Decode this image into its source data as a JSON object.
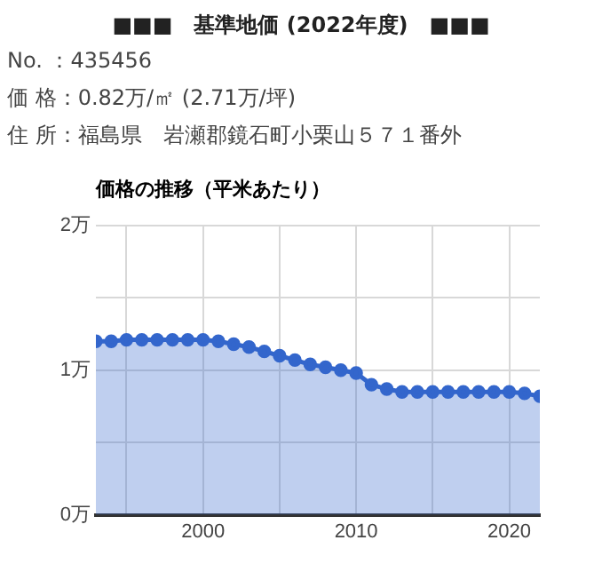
{
  "chart_data": {
    "type": "area",
    "title": "■■■　基準地価 (2022年度)　■■■",
    "subtitle": "価格の推移（平米あたり）",
    "annotations": [
      "No. ：435456",
      "価 格：0.82万/㎡ (2.71万/坪)",
      "住 所：福島県　岩瀬郡鏡石町小栗山５７１番外"
    ],
    "x": [
      1993,
      1994,
      1995,
      1996,
      1997,
      1998,
      1999,
      2000,
      2001,
      2002,
      2003,
      2004,
      2005,
      2006,
      2007,
      2008,
      2009,
      2010,
      2011,
      2012,
      2013,
      2014,
      2015,
      2016,
      2017,
      2018,
      2019,
      2020,
      2021,
      2022
    ],
    "series": [
      {
        "color": "#3366cc",
        "values": [
          1.2,
          1.2,
          1.21,
          1.21,
          1.21,
          1.21,
          1.21,
          1.21,
          1.2,
          1.18,
          1.16,
          1.13,
          1.1,
          1.07,
          1.04,
          1.02,
          1.0,
          0.98,
          0.9,
          0.87,
          0.85,
          0.85,
          0.85,
          0.85,
          0.85,
          0.85,
          0.85,
          0.85,
          0.84,
          0.82
        ]
      }
    ],
    "xlim": [
      1993,
      2022
    ],
    "xticks": [
      {
        "value": 1995,
        "label": null
      },
      2000,
      {
        "value": 2005,
        "label": null
      },
      2010,
      {
        "value": 2015,
        "label": null
      },
      2020
    ],
    "ylim": [
      0,
      2
    ],
    "yticks": [
      {
        "value": 0,
        "label": "0万"
      },
      {
        "value": 0.5,
        "label": null
      },
      {
        "value": 1,
        "label": "1万"
      },
      {
        "value": 1.5,
        "label": null
      },
      {
        "value": 2,
        "label": "2万"
      }
    ],
    "ylabel": null,
    "grid": true,
    "legend": false,
    "marker": "circle"
  }
}
